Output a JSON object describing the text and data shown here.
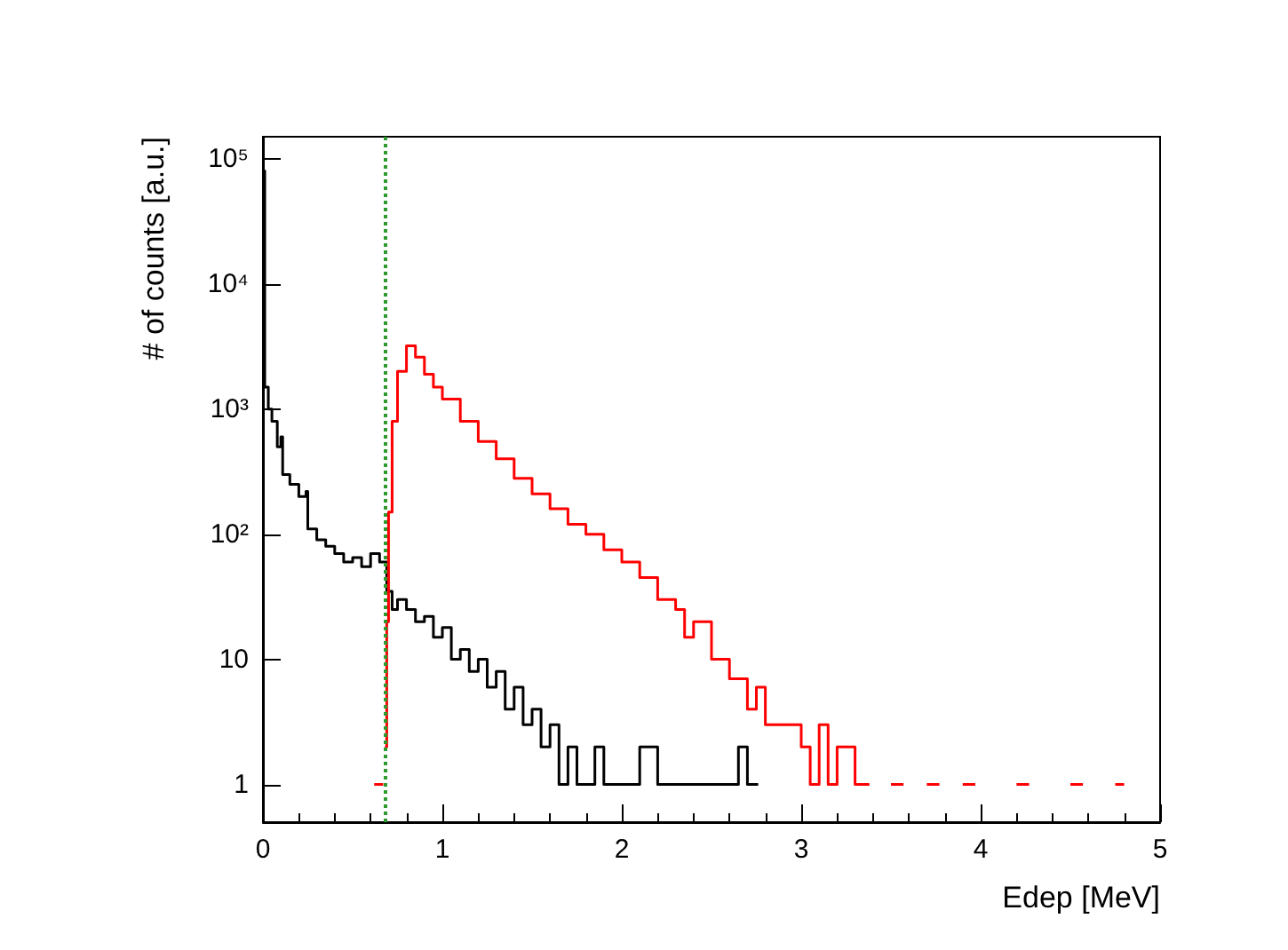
{
  "chart_data": {
    "type": "step",
    "xlabel": "Edep [MeV]",
    "ylabel": "# of counts [a.u.]",
    "log": "y",
    "grid": false,
    "xlim": [
      0,
      5
    ],
    "xticks": [
      0,
      1,
      2,
      3,
      4,
      5
    ],
    "ylim": [
      0.5,
      150000
    ],
    "yticks": [
      1,
      10,
      {
        "value": 100,
        "label": "10²"
      },
      {
        "value": 1000,
        "label": "10³"
      },
      {
        "value": 10000,
        "label": "10⁴"
      },
      {
        "value": 100000,
        "label": "10⁵"
      }
    ],
    "ref_lines": [
      {
        "axis": "x",
        "value": 0.68,
        "color": "#2e9a2e",
        "line_style": "dotted"
      }
    ],
    "series": [
      {
        "color": "#000000",
        "x": [
          0,
          0.01,
          0.03,
          0.05,
          0.08,
          0.1,
          0.11,
          0.15,
          0.2,
          0.24,
          0.25,
          0.3,
          0.35,
          0.4,
          0.45,
          0.5,
          0.55,
          0.6,
          0.65,
          0.69,
          0.72,
          0.75,
          0.8,
          0.85,
          0.9,
          0.95,
          1.0,
          1.05,
          1.1,
          1.15,
          1.2,
          1.25,
          1.3,
          1.35,
          1.4,
          1.45,
          1.5,
          1.55,
          1.6,
          1.65,
          1.7,
          1.75,
          1.8,
          1.85,
          1.9,
          2.0,
          2.1,
          2.2,
          2.3,
          2.4,
          2.5,
          2.6,
          2.65,
          2.7,
          2.76
        ],
        "values": [
          80000,
          1500,
          1000,
          800,
          500,
          600,
          300,
          250,
          200,
          220,
          110,
          90,
          80,
          70,
          60,
          65,
          55,
          70,
          60,
          35,
          25,
          30,
          25,
          20,
          22,
          15,
          18,
          10,
          12,
          8,
          10,
          6,
          8,
          4,
          6,
          3,
          4,
          2,
          3,
          1,
          2,
          1,
          1,
          2,
          1,
          1,
          2,
          1,
          1,
          1,
          1,
          1,
          2,
          1,
          1
        ]
      },
      {
        "color": "#ff0000",
        "x": [
          0.62,
          0.66,
          0.67,
          0.68,
          0.69,
          0.7,
          0.72,
          0.75,
          0.8,
          0.85,
          0.9,
          0.95,
          1.0,
          1.1,
          1.2,
          1.3,
          1.4,
          1.5,
          1.6,
          1.7,
          1.8,
          1.9,
          2.0,
          2.1,
          2.2,
          2.3,
          2.35,
          2.4,
          2.5,
          2.6,
          2.7,
          2.75,
          2.8,
          2.9,
          3.0,
          3.05,
          3.1,
          3.15,
          3.2,
          3.3,
          3.36,
          3.38,
          3.5,
          3.55,
          3.57,
          3.7,
          3.75,
          3.77,
          3.9,
          3.95,
          3.97,
          4.2,
          4.25,
          4.27,
          4.5,
          4.55,
          4.57,
          4.75,
          4.8
        ],
        "values": [
          1,
          1,
          null,
          2,
          20,
          150,
          800,
          2000,
          3200,
          2600,
          1900,
          1500,
          1200,
          800,
          550,
          400,
          280,
          210,
          160,
          120,
          100,
          75,
          60,
          45,
          30,
          25,
          15,
          20,
          10,
          7,
          4,
          6,
          3,
          3,
          2,
          1,
          3,
          1,
          2,
          1,
          1,
          null,
          1,
          1,
          null,
          1,
          1,
          null,
          1,
          1,
          null,
          1,
          1,
          null,
          1,
          1,
          null,
          1,
          1
        ]
      }
    ]
  }
}
